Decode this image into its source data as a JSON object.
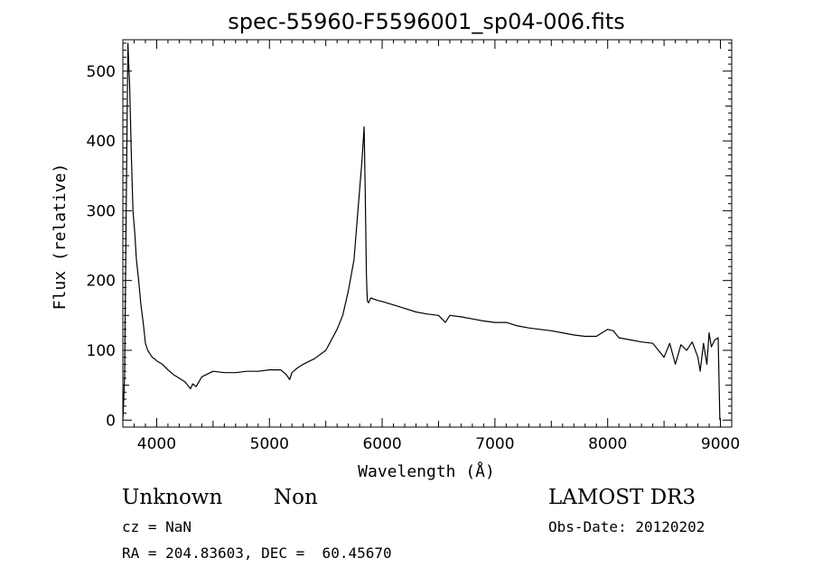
{
  "chart_data": {
    "type": "line",
    "title": "spec-55960-F5596001_sp04-006.fits",
    "xlabel": "Wavelength (Å)",
    "ylabel": "Flux (relative)",
    "xlim": [
      3700,
      9100
    ],
    "ylim": [
      -10,
      545
    ],
    "xticks": [
      4000,
      5000,
      6000,
      7000,
      8000,
      9000
    ],
    "yticks": [
      0,
      100,
      200,
      300,
      400,
      500
    ],
    "grid": false,
    "series": [
      {
        "x": [
          3700,
          3715,
          3730,
          3745,
          3760,
          3775,
          3790,
          3805,
          3820,
          3840,
          3860,
          3880,
          3900,
          3920,
          3940,
          3960,
          3980,
          4000,
          4050,
          4100,
          4150,
          4200,
          4250,
          4300,
          4320,
          4350,
          4400,
          4500,
          4600,
          4700,
          4800,
          4900,
          5000,
          5100,
          5150,
          5180,
          5200,
          5250,
          5300,
          5400,
          5500,
          5550,
          5600,
          5650,
          5700,
          5750,
          5780,
          5800,
          5820,
          5840,
          5850,
          5860,
          5865,
          5870,
          5880,
          5890,
          5900,
          5950,
          6000,
          6100,
          6200,
          6300,
          6400,
          6500,
          6560,
          6600,
          6700,
          6800,
          6900,
          7000,
          7100,
          7200,
          7300,
          7400,
          7500,
          7600,
          7700,
          7800,
          7900,
          8000,
          8050,
          8100,
          8200,
          8300,
          8400,
          8450,
          8500,
          8550,
          8600,
          8650,
          8700,
          8750,
          8800,
          8820,
          8850,
          8880,
          8900,
          8920,
          8950,
          8980,
          8995
        ],
        "y": [
          0,
          60,
          300,
          540,
          480,
          380,
          300,
          270,
          230,
          200,
          165,
          140,
          110,
          100,
          95,
          90,
          88,
          85,
          80,
          72,
          65,
          60,
          55,
          45,
          52,
          48,
          62,
          70,
          68,
          68,
          70,
          70,
          72,
          72,
          65,
          58,
          68,
          75,
          80,
          88,
          100,
          115,
          130,
          150,
          185,
          230,
          290,
          330,
          370,
          420,
          320,
          210,
          185,
          170,
          168,
          172,
          175,
          172,
          170,
          165,
          160,
          155,
          152,
          150,
          140,
          150,
          148,
          145,
          142,
          140,
          140,
          135,
          132,
          130,
          128,
          125,
          122,
          120,
          120,
          130,
          128,
          118,
          115,
          112,
          110,
          100,
          90,
          110,
          80,
          108,
          100,
          112,
          90,
          70,
          110,
          80,
          125,
          105,
          115,
          118,
          0
        ]
      }
    ]
  },
  "info": {
    "object_class": "Unknown",
    "subclass": "Non",
    "cz": "cz = NaN",
    "coords": "RA = 204.83603, DEC =  60.45670",
    "survey": "LAMOST DR3",
    "obs_date": "Obs-Date: 20120202"
  }
}
